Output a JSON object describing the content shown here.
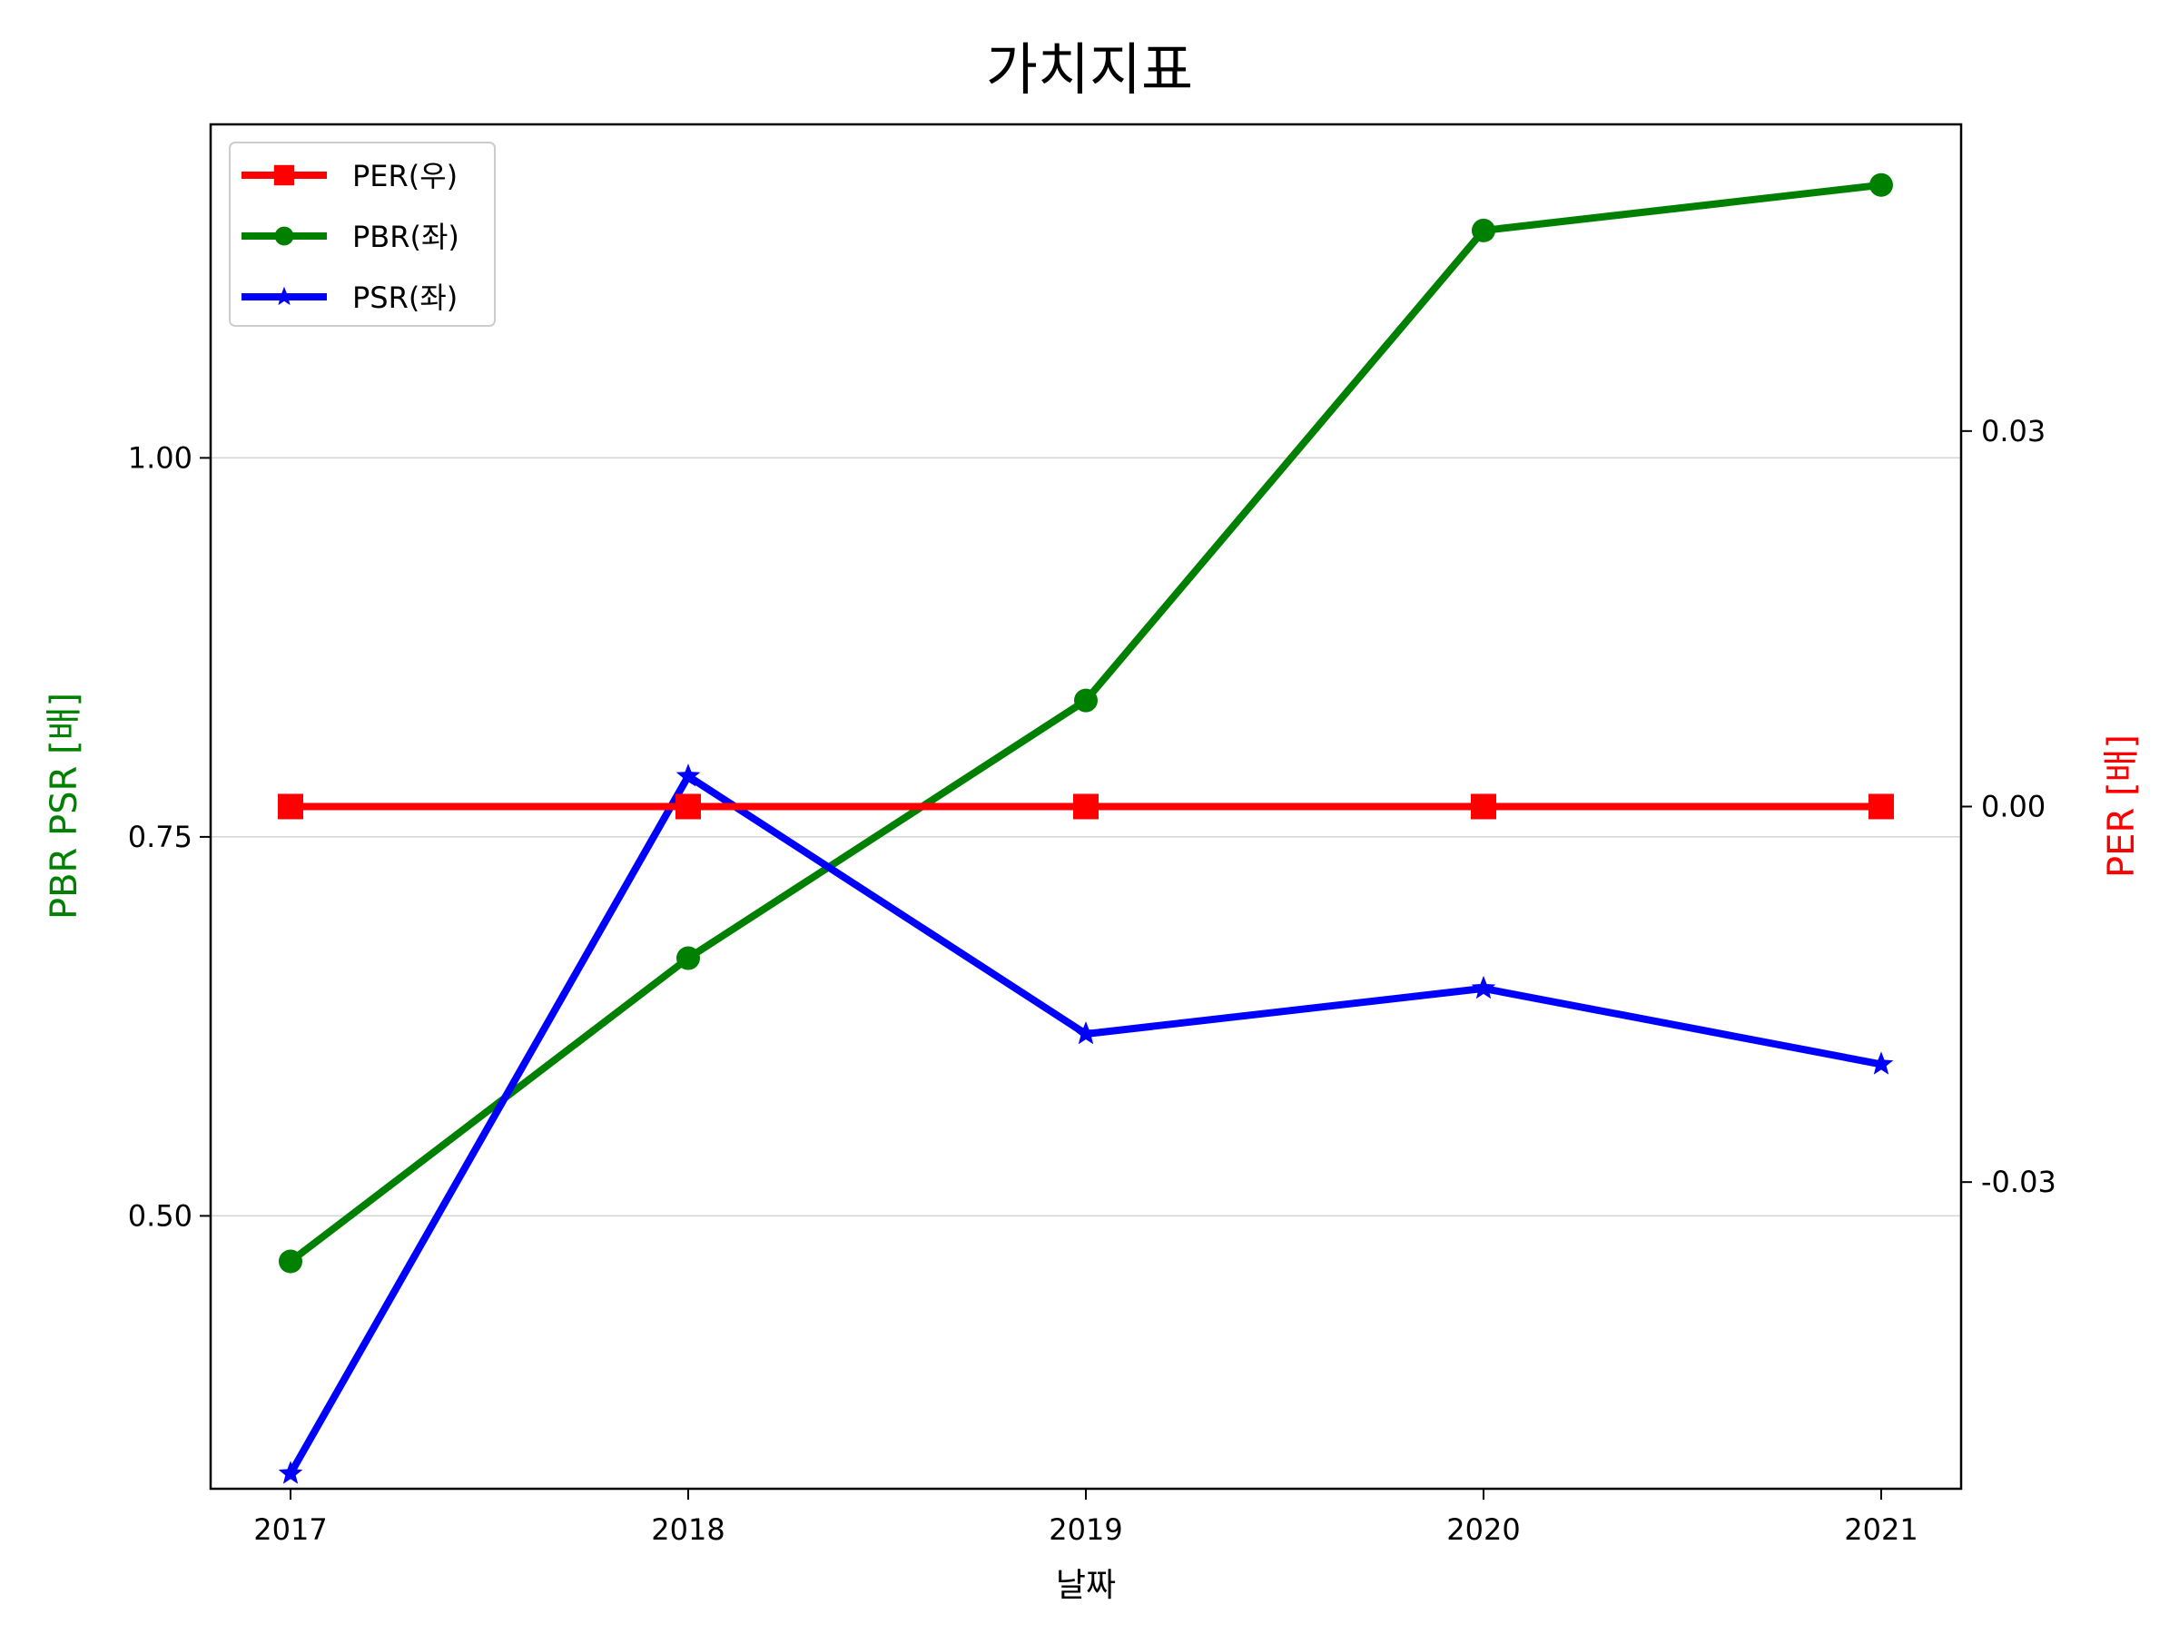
{
  "chart_data": {
    "type": "line",
    "title": "가치지표",
    "xlabel": "날짜",
    "ylabel_left": "PBR PSR [배]",
    "ylabel_right": "PER [배]",
    "x": [
      "2017",
      "2018",
      "2019",
      "2020",
      "2021"
    ],
    "ylim_left": [
      0.32,
      1.22
    ],
    "ylim_right": [
      -0.0545,
      0.0545
    ],
    "yticks_left": [
      0.5,
      0.75,
      1.0
    ],
    "yticks_left_labels": [
      "0.50",
      "0.75",
      "1.00"
    ],
    "yticks_right": [
      -0.03,
      0.0,
      0.03
    ],
    "yticks_right_labels": [
      "-0.03",
      "0.00",
      "0.03"
    ],
    "grid": "horizontal",
    "legend_position": "top-left",
    "series": [
      {
        "name": "PER(우)",
        "axis": "right",
        "color": "#ff0000",
        "marker": "square",
        "values": [
          0,
          0,
          0,
          0,
          0
        ]
      },
      {
        "name": "PBR(좌)",
        "axis": "left",
        "color": "#008000",
        "marker": "circle",
        "values": [
          0.47,
          0.67,
          0.84,
          1.15,
          1.18
        ]
      },
      {
        "name": "PSR(좌)",
        "axis": "left",
        "color": "#0000ff",
        "marker": "star",
        "values": [
          0.33,
          0.79,
          0.62,
          0.65,
          0.6
        ]
      }
    ]
  }
}
